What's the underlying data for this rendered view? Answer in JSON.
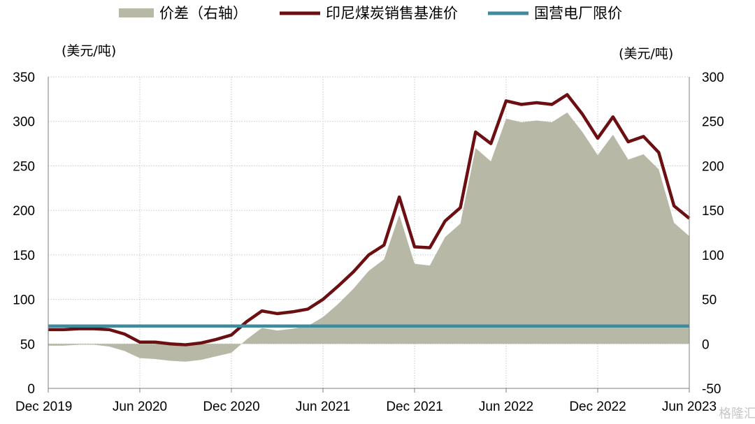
{
  "chart_data": {
    "type": "line",
    "units": {
      "left": "(美元/吨)",
      "right": "(美元/吨)"
    },
    "x_axis": {
      "min": "2019-12",
      "max": "2023-06",
      "tick_labels": [
        "Dec 2019",
        "Jun 2020",
        "Dec 2020",
        "Jun 2021",
        "Dec 2021",
        "Jun 2022",
        "Dec 2022",
        "Jun 2023"
      ],
      "tick_dates": [
        "2019-12",
        "2020-06",
        "2020-12",
        "2021-06",
        "2021-12",
        "2022-06",
        "2022-12",
        "2023-06"
      ],
      "vertical_grid": "dotted"
    },
    "y_left": {
      "min": 0,
      "max": 350,
      "ticks": [
        0,
        50,
        100,
        150,
        200,
        250,
        300,
        350
      ]
    },
    "y_right": {
      "min": -50,
      "max": 300,
      "ticks": [
        -50,
        0,
        50,
        100,
        150,
        200,
        250,
        300
      ]
    },
    "horizontal_grid": "dotted",
    "legend": {
      "placement": "top"
    },
    "series": [
      {
        "name": "价差（右轴）",
        "kind": "area",
        "axis": "right",
        "color": "#b8b8a6",
        "points": [
          [
            "2019-12",
            -2
          ],
          [
            "2020-01",
            -2
          ],
          [
            "2020-02",
            -1
          ],
          [
            "2020-03",
            -1
          ],
          [
            "2020-04",
            -3
          ],
          [
            "2020-05",
            -8
          ],
          [
            "2020-06",
            -16
          ],
          [
            "2020-07",
            -17
          ],
          [
            "2020-08",
            -19
          ],
          [
            "2020-09",
            -20
          ],
          [
            "2020-10",
            -18
          ],
          [
            "2020-11",
            -14
          ],
          [
            "2020-12",
            -10
          ],
          [
            "2021-01",
            5
          ],
          [
            "2021-02",
            18
          ],
          [
            "2021-03",
            15
          ],
          [
            "2021-04",
            17
          ],
          [
            "2021-05",
            20
          ],
          [
            "2021-06",
            30
          ],
          [
            "2021-07",
            45
          ],
          [
            "2021-08",
            62
          ],
          [
            "2021-09",
            82
          ],
          [
            "2021-10",
            95
          ],
          [
            "2021-11",
            145
          ],
          [
            "2021-12",
            90
          ],
          [
            "2022-01",
            88
          ],
          [
            "2022-02",
            120
          ],
          [
            "2022-03",
            135
          ],
          [
            "2022-04",
            220
          ],
          [
            "2022-05",
            205
          ],
          [
            "2022-06",
            253
          ],
          [
            "2022-07",
            249
          ],
          [
            "2022-08",
            251
          ],
          [
            "2022-09",
            249
          ],
          [
            "2022-10",
            260
          ],
          [
            "2022-11",
            238
          ],
          [
            "2022-12",
            212
          ],
          [
            "2023-01",
            235
          ],
          [
            "2023-02",
            207
          ],
          [
            "2023-03",
            213
          ],
          [
            "2023-04",
            196
          ],
          [
            "2023-05",
            136
          ],
          [
            "2023-06",
            121
          ]
        ]
      },
      {
        "name": "印尼煤炭销售基准价",
        "kind": "line",
        "axis": "left",
        "color": "#6b0f12",
        "points": [
          [
            "2019-12",
            66
          ],
          [
            "2020-01",
            66
          ],
          [
            "2020-02",
            67
          ],
          [
            "2020-03",
            67
          ],
          [
            "2020-04",
            66
          ],
          [
            "2020-05",
            61
          ],
          [
            "2020-06",
            52
          ],
          [
            "2020-07",
            52
          ],
          [
            "2020-08",
            50
          ],
          [
            "2020-09",
            49
          ],
          [
            "2020-10",
            51
          ],
          [
            "2020-11",
            55
          ],
          [
            "2020-12",
            60
          ],
          [
            "2021-01",
            75
          ],
          [
            "2021-02",
            87
          ],
          [
            "2021-03",
            84
          ],
          [
            "2021-04",
            86
          ],
          [
            "2021-05",
            89
          ],
          [
            "2021-06",
            100
          ],
          [
            "2021-07",
            115
          ],
          [
            "2021-08",
            131
          ],
          [
            "2021-09",
            150
          ],
          [
            "2021-10",
            161
          ],
          [
            "2021-11",
            215
          ],
          [
            "2021-12",
            159
          ],
          [
            "2022-01",
            158
          ],
          [
            "2022-02",
            188
          ],
          [
            "2022-03",
            203
          ],
          [
            "2022-04",
            288
          ],
          [
            "2022-05",
            275
          ],
          [
            "2022-06",
            323
          ],
          [
            "2022-07",
            319
          ],
          [
            "2022-08",
            321
          ],
          [
            "2022-09",
            319
          ],
          [
            "2022-10",
            330
          ],
          [
            "2022-11",
            308
          ],
          [
            "2022-12",
            281
          ],
          [
            "2023-01",
            305
          ],
          [
            "2023-02",
            277
          ],
          [
            "2023-03",
            283
          ],
          [
            "2023-04",
            265
          ],
          [
            "2023-05",
            205
          ],
          [
            "2023-06",
            191
          ]
        ]
      },
      {
        "name": "国营电厂限价",
        "kind": "line",
        "axis": "left",
        "color": "#3f8a9c",
        "points": [
          [
            "2019-12",
            70
          ],
          [
            "2023-06",
            70
          ]
        ]
      }
    ]
  },
  "watermark": "格隆汇"
}
